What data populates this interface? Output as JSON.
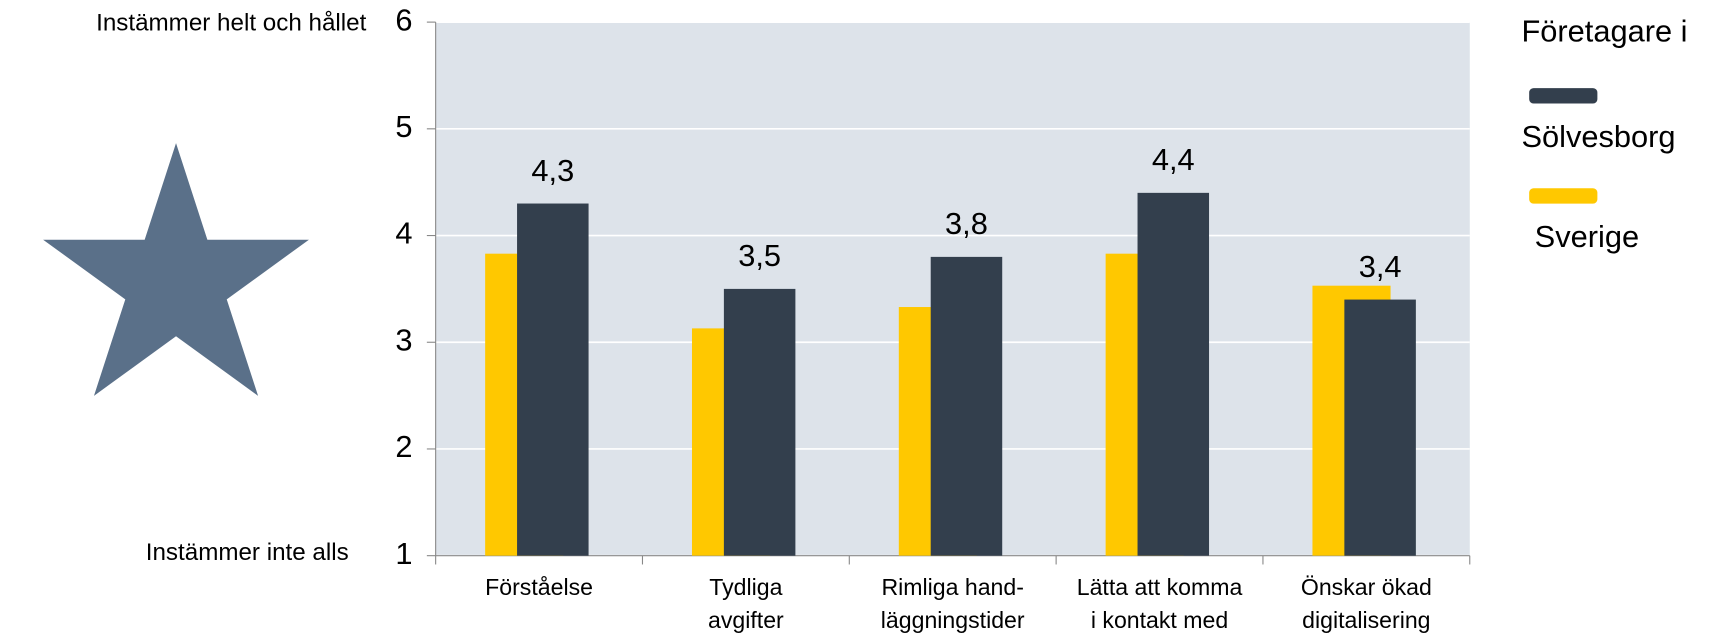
{
  "chart_data": {
    "type": "bar",
    "y_annotation_top": "Instämmer helt och hållet",
    "y_annotation_bottom": "Instämmer inte alls",
    "legend_title": "Företagare i",
    "categories": [
      [
        "Förståelse"
      ],
      [
        "Tydliga",
        "avgifter"
      ],
      [
        "Rimliga hand-",
        "läggningstider"
      ],
      [
        "Lätta att komma",
        "i kontakt med"
      ],
      [
        "Önskar ökad",
        "digitalisering"
      ]
    ],
    "series": [
      {
        "name": "Sölvesborg",
        "color": "#333f4d",
        "values": [
          4.3,
          3.5,
          3.8,
          4.4,
          3.4
        ],
        "value_labels": [
          "4,3",
          "3,5",
          "3,8",
          "4,4",
          "3,4"
        ]
      },
      {
        "name": "Sverige",
        "color": "#ffc800",
        "values": [
          3.83,
          3.13,
          3.33,
          3.83,
          3.53
        ]
      }
    ],
    "ylim": [
      1,
      6
    ],
    "yticks": [
      1,
      2,
      3,
      4,
      5,
      6
    ],
    "grid": true,
    "legend": "right"
  }
}
